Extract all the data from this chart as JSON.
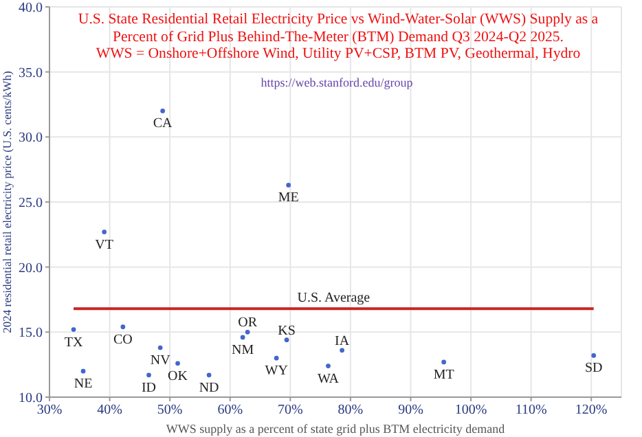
{
  "chart_data": {
    "type": "scatter",
    "title": "U.S. State Residential Retail Electricity Price vs Wind-Water-Solar (WWS) Supply as a Percent of Grid Plus Behind-The-Meter (BTM) Demand Q3 2024-Q2 2025.\nWWS = Onshore+Offshore Wind, Utility PV+CSP, BTM PV, Geothermal, Hydro",
    "subtitle": "https://web.stanford.edu/group",
    "xlabel": "WWS supply as a percent of state grid plus BTM electricity demand",
    "ylabel": "2024 residential retail electricity price (U.S. cents/kWh)",
    "series": [
      {
        "color": "#4466cc",
        "x": [
          34.0,
          35.6,
          39.1,
          42.2,
          46.5,
          48.4,
          48.8,
          51.3,
          56.5,
          62.1,
          62.9,
          67.7,
          69.4,
          69.7,
          76.3,
          78.6,
          95.5,
          120.4
        ],
        "values": [
          15.2,
          12.0,
          22.7,
          15.4,
          11.7,
          13.8,
          32.0,
          12.6,
          11.7,
          14.6,
          15.0,
          13.0,
          14.4,
          26.3,
          12.4,
          13.6,
          12.7,
          13.2
        ]
      }
    ],
    "annotations": [
      {
        "text": "TX",
        "x": 34.0,
        "y": 15.2
      },
      {
        "text": "NE",
        "x": 35.6,
        "y": 12.0
      },
      {
        "text": "VT",
        "x": 39.1,
        "y": 22.7
      },
      {
        "text": "CO",
        "x": 42.2,
        "y": 15.4
      },
      {
        "text": "ID",
        "x": 46.5,
        "y": 11.7
      },
      {
        "text": "NV",
        "x": 48.4,
        "y": 13.8
      },
      {
        "text": "CA",
        "x": 48.8,
        "y": 32.0
      },
      {
        "text": "OK",
        "x": 51.3,
        "y": 12.6
      },
      {
        "text": "ND",
        "x": 56.5,
        "y": 11.7
      },
      {
        "text": "NM",
        "x": 62.1,
        "y": 14.6
      },
      {
        "text": "OR",
        "x": 62.9,
        "y": 15.0
      },
      {
        "text": "WY",
        "x": 67.7,
        "y": 13.0
      },
      {
        "text": "KS",
        "x": 69.4,
        "y": 14.4
      },
      {
        "text": "ME",
        "x": 69.7,
        "y": 26.3
      },
      {
        "text": "WA",
        "x": 76.3,
        "y": 12.4
      },
      {
        "text": "IA",
        "x": 78.6,
        "y": 13.6
      },
      {
        "text": "MT",
        "x": 95.5,
        "y": 12.7
      },
      {
        "text": "SD",
        "x": 120.4,
        "y": 13.2
      }
    ],
    "ref_lines": [
      {
        "axis": "y",
        "value": 16.8,
        "label": "U.S. Average",
        "color": "#cc2222"
      }
    ],
    "xlim": [
      30,
      125
    ],
    "xticks": [
      {
        "value": 30,
        "label": "30%"
      },
      {
        "value": 40,
        "label": "40%"
      },
      {
        "value": 50,
        "label": "50%"
      },
      {
        "value": 60,
        "label": "60%"
      },
      {
        "value": 70,
        "label": "70%"
      },
      {
        "value": 80,
        "label": "80%"
      },
      {
        "value": 90,
        "label": "90%"
      },
      {
        "value": 100,
        "label": "100%"
      },
      {
        "value": 110,
        "label": "110%"
      },
      {
        "value": 120,
        "label": "120%"
      }
    ],
    "ylim": [
      10,
      40
    ],
    "yticks": [
      {
        "value": 10,
        "label": "10.0"
      },
      {
        "value": 15,
        "label": "15.0"
      },
      {
        "value": 20,
        "label": "20.0"
      },
      {
        "value": 25,
        "label": "25.0"
      },
      {
        "value": 30,
        "label": "30.0"
      },
      {
        "value": 35,
        "label": "35.0"
      },
      {
        "value": 40,
        "label": "40.0"
      }
    ],
    "grid": true,
    "marker": "circle",
    "legend": false
  }
}
